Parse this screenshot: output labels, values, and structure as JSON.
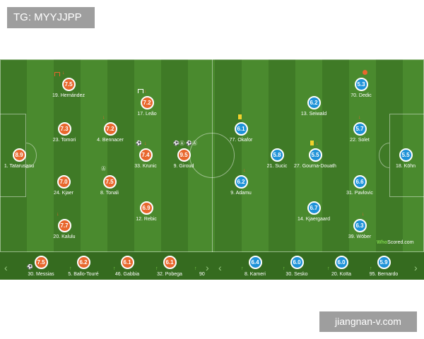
{
  "watermark_top": "TG: MYYJJPP",
  "watermark_bottom": "jiangnan-v.com",
  "branding": {
    "who": "Who",
    "rest": "Scored.com"
  },
  "home_players": [
    {
      "number": "19",
      "name": "Hernández",
      "rating": "7.5"
    },
    {
      "number": "17",
      "name": "Leão",
      "rating": "7.2"
    },
    {
      "number": "23",
      "name": "Tomori",
      "rating": "7.3"
    },
    {
      "number": "4",
      "name": "Bennacer",
      "rating": "7.2"
    },
    {
      "number": "1",
      "name": "Tatarusanu",
      "rating": "8.9"
    },
    {
      "number": "33",
      "name": "Krunic",
      "rating": "7.4"
    },
    {
      "number": "9",
      "name": "Giroud",
      "rating": "9.5"
    },
    {
      "number": "24",
      "name": "Kjaer",
      "rating": "7.0"
    },
    {
      "number": "8",
      "name": "Tonali",
      "rating": "7.5"
    },
    {
      "number": "12",
      "name": "Rebic",
      "rating": "6.9"
    },
    {
      "number": "20",
      "name": "Kalulu",
      "rating": "7.7"
    }
  ],
  "away_players": [
    {
      "number": "70",
      "name": "Dedic",
      "rating": "5.3"
    },
    {
      "number": "13",
      "name": "Seiwald",
      "rating": "6.2"
    },
    {
      "number": "77",
      "name": "Okafor",
      "rating": "6.1"
    },
    {
      "number": "22",
      "name": "Solet",
      "rating": "5.7"
    },
    {
      "number": "21",
      "name": "Sucic",
      "rating": "5.8"
    },
    {
      "number": "27",
      "name": "Gourna-Douath",
      "rating": "5.5"
    },
    {
      "number": "18",
      "name": "Köhn",
      "rating": "5.5"
    },
    {
      "number": "9",
      "name": "Adamu",
      "rating": "6.2"
    },
    {
      "number": "31",
      "name": "Pavlovic",
      "rating": "6.6"
    },
    {
      "number": "14",
      "name": "Kjaergaard",
      "rating": "6.7"
    },
    {
      "number": "39",
      "name": "Wöber",
      "rating": "6.3"
    }
  ],
  "home_subs": [
    {
      "number": "30",
      "name": "Messias",
      "rating": "7.5"
    },
    {
      "number": "5",
      "name": "Ballo-Touré",
      "rating": "6.2"
    },
    {
      "number": "46",
      "name": "Gabbia",
      "rating": "6.1"
    },
    {
      "number": "32",
      "name": "Pobega",
      "rating": "6.1"
    },
    {
      "number": "90",
      "name": "",
      "rating": ""
    }
  ],
  "away_subs": [
    {
      "number": "8",
      "name": "Kameri",
      "rating": "6.4"
    },
    {
      "number": "30",
      "name": "Sesko",
      "rating": "6.0"
    },
    {
      "number": "20",
      "name": "Koïta",
      "rating": "6.0"
    },
    {
      "number": "95",
      "name": "Bernardo",
      "rating": "5.9"
    }
  ],
  "icons": {
    "sub_out": "down-arrow-icon",
    "sub_in": "up-arrow-icon",
    "goal": "ball-icon",
    "assist": "assist-icon",
    "yellow_card": "yellow-card-icon",
    "captain": "captain-icon",
    "prev": "chevron-left-icon",
    "next": "chevron-right-icon"
  },
  "colors": {
    "home": "#e8672d",
    "away": "#1e92d8",
    "pitch": "#4a8a2e",
    "card": "#f2d12d"
  }
}
